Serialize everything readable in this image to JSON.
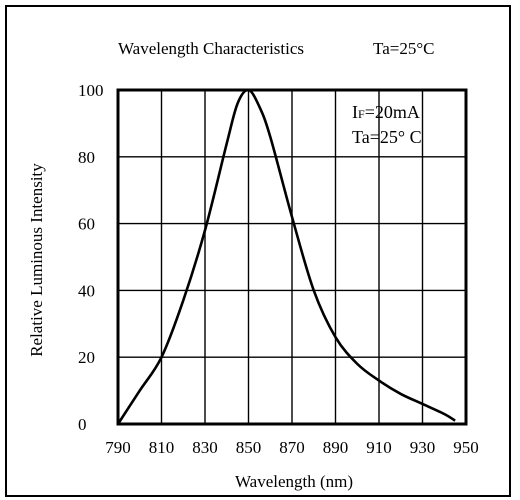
{
  "chart_data": {
    "type": "line",
    "title": "Wavelength Characteristics",
    "title_condition": "Ta=25°C",
    "xlabel": "Wavelength (nm)",
    "ylabel": "Relative Luminous Intensity",
    "xlim": [
      790,
      950
    ],
    "ylim": [
      0,
      100
    ],
    "x_ticks": [
      790,
      810,
      830,
      850,
      870,
      890,
      910,
      930,
      950
    ],
    "y_ticks": [
      0,
      20,
      40,
      60,
      80,
      100
    ],
    "grid": true,
    "annotations": [
      {
        "main": "I",
        "sub": "F",
        "rest": "=20mA"
      },
      {
        "text": "Ta=25°  C"
      }
    ],
    "series": [
      {
        "x": [
          790,
          800,
          810,
          820,
          830,
          840,
          845,
          850,
          855,
          860,
          870,
          880,
          890,
          900,
          910,
          920,
          930,
          940,
          945
        ],
        "y": [
          0,
          10,
          20,
          37,
          58,
          84,
          96,
          100,
          95,
          86,
          62,
          40,
          26,
          18,
          13,
          9,
          6,
          3,
          1
        ]
      }
    ]
  },
  "colors": {
    "line": "#000000",
    "grid": "#000000",
    "background": "#ffffff"
  }
}
